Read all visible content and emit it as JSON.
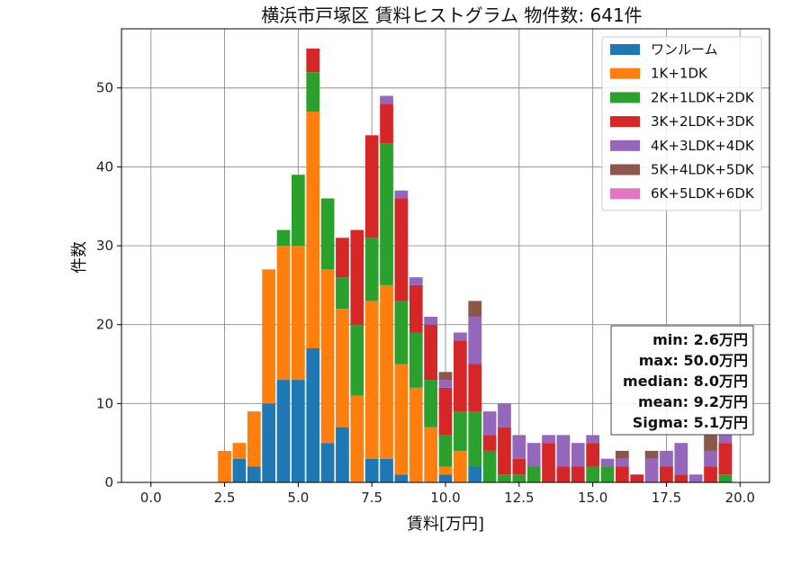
{
  "chart_data": {
    "type": "bar",
    "stacked": true,
    "title": "横浜市戸塚区 賃料ヒストグラム 物件数: 641件",
    "xlabel": "賃料[万円]",
    "ylabel": "件数",
    "xlim": [
      -1.0,
      21.0
    ],
    "ylim": [
      0,
      57.5
    ],
    "xticks": [
      0.0,
      2.5,
      5.0,
      7.5,
      10.0,
      12.5,
      15.0,
      17.5,
      20.0
    ],
    "xtick_labels": [
      "0.0",
      "2.5",
      "5.0",
      "7.5",
      "10.0",
      "12.5",
      "15.0",
      "17.5",
      "20.0"
    ],
    "yticks": [
      0,
      10,
      20,
      30,
      40,
      50
    ],
    "ytick_labels": [
      "0",
      "10",
      "20",
      "30",
      "40",
      "50"
    ],
    "grid": true,
    "legend_position": "top-right",
    "bin_width": 0.5,
    "bin_starts": [
      2.25,
      2.75,
      3.25,
      3.75,
      4.25,
      4.75,
      5.25,
      5.75,
      6.25,
      6.75,
      7.25,
      7.75,
      8.25,
      8.75,
      9.25,
      9.75,
      10.25,
      10.75,
      11.25,
      11.75,
      12.25,
      12.75,
      13.25,
      13.75,
      14.25,
      14.75,
      15.25,
      15.75,
      16.25,
      16.75,
      17.25,
      17.75,
      18.25,
      18.75,
      19.25
    ],
    "series": [
      {
        "name": "ワンルーム",
        "color": "#1f77b4",
        "values": [
          0,
          3,
          2,
          10,
          13,
          13,
          17,
          5,
          7,
          0,
          3,
          3,
          1,
          0,
          0,
          1,
          0,
          2,
          0,
          0,
          0,
          0,
          0,
          0,
          0,
          0,
          0,
          0,
          0,
          0,
          0,
          0,
          0,
          0,
          0
        ]
      },
      {
        "name": "1K+1DK",
        "color": "#ff7f0e",
        "values": [
          4,
          2,
          7,
          17,
          17,
          17,
          30,
          22,
          15,
          11,
          20,
          22,
          14,
          12,
          7,
          1,
          4,
          0,
          0,
          0,
          0,
          0,
          0,
          0,
          0,
          0,
          0,
          0,
          0,
          0,
          0,
          0,
          0,
          0,
          0
        ]
      },
      {
        "name": "2K+1LDK+2DK",
        "color": "#2ca02c",
        "values": [
          0,
          0,
          0,
          0,
          2,
          9,
          5,
          9,
          4,
          9,
          8,
          18,
          8,
          7,
          6,
          4,
          5,
          7,
          4,
          1,
          1,
          2,
          0,
          0,
          0,
          2,
          2,
          0,
          0,
          0,
          0,
          0,
          0,
          0,
          1
        ]
      },
      {
        "name": "3K+2LDK+3DK",
        "color": "#d62728",
        "values": [
          0,
          0,
          0,
          0,
          0,
          0,
          3,
          0,
          5,
          12,
          13,
          5,
          13,
          6,
          7,
          6,
          9,
          6,
          2,
          6,
          2,
          0,
          5,
          2,
          2,
          3,
          0,
          2,
          1,
          0,
          2,
          1,
          0,
          2,
          4
        ]
      },
      {
        "name": "4K+3LDK+4DK",
        "color": "#9467bd",
        "values": [
          0,
          0,
          0,
          0,
          0,
          0,
          0,
          0,
          0,
          0,
          0,
          1,
          1,
          1,
          1,
          1,
          1,
          6,
          3,
          3,
          3,
          3,
          1,
          4,
          3,
          1,
          1,
          1,
          0,
          3,
          2,
          4,
          1,
          2,
          1
        ]
      },
      {
        "name": "5K+4LDK+5DK",
        "color": "#8c564b",
        "values": [
          0,
          0,
          0,
          0,
          0,
          0,
          0,
          0,
          0,
          0,
          0,
          0,
          0,
          0,
          0,
          1,
          0,
          2,
          0,
          0,
          0,
          0,
          0,
          0,
          0,
          0,
          0,
          1,
          0,
          1,
          0,
          0,
          0,
          2,
          0
        ]
      },
      {
        "name": "6K+5LDK+6DK",
        "color": "#e377c2",
        "values": [
          0,
          0,
          0,
          0,
          0,
          0,
          0,
          0,
          0,
          0,
          0,
          0,
          0,
          0,
          0,
          0,
          0,
          0,
          0,
          0,
          0,
          0,
          0,
          0,
          0,
          0,
          0,
          0,
          0,
          0,
          0,
          0,
          0,
          0,
          0
        ]
      }
    ],
    "stats_box": {
      "lines": [
        "min: 2.6万円",
        "max: 50.0万円",
        "median: 8.0万円",
        "mean: 9.2万円",
        "Sigma: 5.1万円"
      ]
    }
  }
}
